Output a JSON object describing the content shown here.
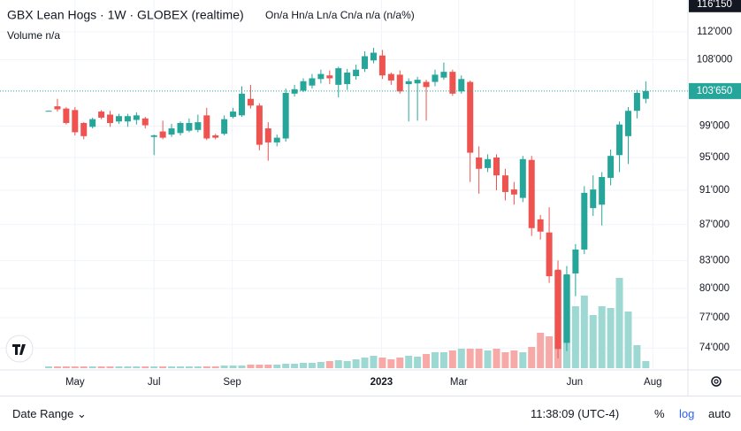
{
  "chart_data": {
    "type": "candlestick",
    "title": "GBX Lean Hogs · 1W · GLOBEX (realtime)",
    "ohlc_legend": "On/a Hn/a Ln/a Cn/a n/a (n/a%)",
    "volume_legend": "Volume n/a",
    "log_scale": true,
    "grid": true,
    "up_color": "#26a69a",
    "down_color": "#ef5350",
    "volume_up_color": "#9ed8d3",
    "volume_down_color": "#f7a9a7",
    "categories": [
      null,
      null,
      null,
      null,
      null,
      null,
      null,
      null,
      null,
      null,
      null,
      null,
      null,
      null,
      null,
      null,
      null,
      null,
      null,
      null,
      null,
      null,
      null,
      null,
      null,
      null,
      null,
      null,
      null,
      null,
      null,
      null,
      null,
      null,
      null,
      null,
      null,
      null,
      null,
      null,
      null,
      null,
      null,
      null,
      null,
      null,
      null,
      null,
      null,
      null,
      null,
      null,
      null,
      null,
      null,
      null,
      null,
      null,
      null,
      null,
      null,
      null,
      null,
      null,
      null,
      null,
      null,
      null,
      null
    ],
    "open": [
      100.9,
      101.6,
      101.3,
      101.1,
      99.4,
      98.9,
      100.9,
      100.5,
      99.6,
      99.6,
      99.8,
      100,
      97.6,
      98.3,
      97.9,
      98.1,
      98.4,
      98.5,
      100.4,
      97.8,
      98,
      100.2,
      100.4,
      102.6,
      101.7,
      98.7,
      96.9,
      97.4,
      103.3,
      103.7,
      104.4,
      105.3,
      105.8,
      104.5,
      104.6,
      105.7,
      106.7,
      107.9,
      108.6,
      106,
      105.9,
      104.6,
      104.7,
      104.9,
      104.9,
      105.5,
      106.3,
      103.6,
      104.9,
      95,
      93.7,
      95,
      92.8,
      91.1,
      90.1,
      94.7,
      87.6,
      86.1,
      82,
      74.5,
      81.6,
      84.2,
      88.9,
      89.3,
      92.5,
      95.3,
      97.7,
      101,
      102.6
    ],
    "high": [
      101,
      102.6,
      101.5,
      101.5,
      99.5,
      100.1,
      101.1,
      101,
      100.6,
      100.6,
      100.8,
      100.2,
      97.9,
      99.7,
      99.3,
      99.6,
      100,
      100.5,
      101.4,
      98,
      100.4,
      101.4,
      104.3,
      104.5,
      102,
      99.5,
      97.9,
      104,
      104.5,
      105.4,
      106,
      106.6,
      106.5,
      107,
      106.7,
      107.3,
      109.2,
      109.7,
      109.4,
      106.2,
      106.5,
      105.4,
      105.6,
      105.2,
      106.6,
      107.6,
      106.6,
      105.8,
      105.1,
      96.4,
      95.4,
      95.4,
      93.6,
      92,
      95.2,
      95.2,
      88.1,
      89,
      83,
      82.4,
      84.8,
      91.5,
      92.8,
      93.2,
      96,
      99.6,
      101.5,
      103.8,
      105
    ],
    "low": [
      100.9,
      100.9,
      99.2,
      97.8,
      97.3,
      98.7,
      99.9,
      98.9,
      99.3,
      98.9,
      99.2,
      98.7,
      95.3,
      97.3,
      97.6,
      97.8,
      98.2,
      98.2,
      97.2,
      97.3,
      97.8,
      100,
      100.2,
      101.3,
      95.9,
      94.6,
      96.4,
      97,
      102.9,
      103.5,
      104,
      104.7,
      104.6,
      102.8,
      103.8,
      105.2,
      106.3,
      107.5,
      105.3,
      104.5,
      103.3,
      99.6,
      99.7,
      99.7,
      104.3,
      105.2,
      103,
      103.3,
      92,
      90.6,
      93.2,
      91,
      89.8,
      89.3,
      89.6,
      85.7,
      85.3,
      80.6,
      73,
      73.7,
      79.2,
      83.7,
      88,
      86.9,
      91.6,
      93.2,
      94.2,
      100,
      102
    ],
    "close": [
      101.0,
      101.2,
      99.4,
      98.2,
      97.7,
      99.9,
      100.1,
      99.4,
      100.3,
      100.3,
      100.4,
      99.1,
      97.8,
      97.5,
      98.7,
      99.4,
      99.4,
      99.5,
      97.4,
      97.5,
      99.9,
      100.9,
      103.3,
      101.7,
      96.6,
      96.9,
      97.5,
      103.4,
      103.9,
      105,
      105.4,
      106,
      105.4,
      106.8,
      106.2,
      106.6,
      108.5,
      109,
      105.8,
      105.1,
      103.6,
      105,
      105.2,
      104.2,
      105.9,
      106.3,
      103.3,
      105.3,
      95.6,
      93.6,
      94.8,
      92.8,
      90.8,
      90.5,
      94.8,
      86.6,
      86.2,
      81.3,
      73.9,
      81.5,
      84.2,
      90.7,
      91.1,
      92.6,
      95.2,
      99.2,
      101,
      103.4,
      103.65
    ],
    "volume": [
      2,
      2,
      2,
      2,
      2,
      2,
      2,
      2,
      2,
      2,
      2,
      2,
      2,
      2,
      2,
      2,
      2,
      2,
      2,
      2,
      3,
      3,
      3,
      4,
      4,
      4,
      4,
      5,
      5,
      6,
      6,
      7,
      8,
      9,
      8,
      10,
      12,
      14,
      12,
      10,
      12,
      14,
      13,
      16,
      18,
      18,
      20,
      22,
      22,
      22,
      20,
      22,
      18,
      20,
      18,
      24,
      40,
      36,
      110,
      105,
      70,
      82,
      60,
      70,
      68,
      102,
      64,
      26,
      8
    ],
    "vlim": [
      0,
      140
    ],
    "ylim": [
      71.9,
      116.8
    ],
    "yticks": [
      {
        "value": 112,
        "label": "112'000"
      },
      {
        "value": 108,
        "label": "108'000"
      },
      {
        "value": 99,
        "label": "99'000"
      },
      {
        "value": 95,
        "label": "95'000"
      },
      {
        "value": 91,
        "label": "91'000"
      },
      {
        "value": 87,
        "label": "87'000"
      },
      {
        "value": 83,
        "label": "83'000"
      },
      {
        "value": 80,
        "label": "80'000"
      },
      {
        "value": 77,
        "label": "77'000"
      },
      {
        "value": 74,
        "label": "74'000"
      }
    ],
    "last_price": {
      "value": 103.65,
      "label": "103'650"
    },
    "top_price": {
      "value": 116.15,
      "label": "116'150"
    },
    "xlim": [
      -5.54,
      72.8
    ],
    "xticks": [
      {
        "value": 3.0,
        "label": "May"
      },
      {
        "value": 12.0,
        "label": "Jul"
      },
      {
        "value": 20.9,
        "label": "Sep"
      },
      {
        "value": 37.9,
        "label": "2023"
      },
      {
        "value": 46.7,
        "label": "Mar"
      },
      {
        "value": 59.9,
        "label": "Jun"
      },
      {
        "value": 68.8,
        "label": "Aug"
      }
    ]
  },
  "footer": {
    "date_range": "Date Range",
    "time": "11:38:09 (UTC-4)",
    "percent": "%",
    "log": "log",
    "auto": "auto"
  }
}
